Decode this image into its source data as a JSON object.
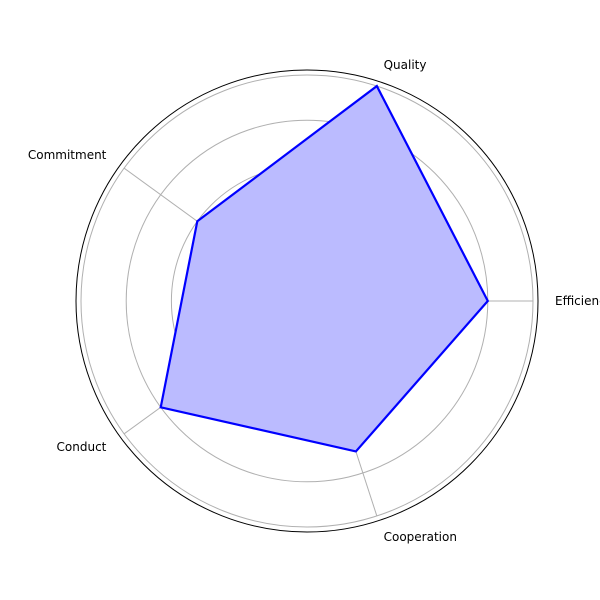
{
  "chart_data": {
    "type": "radar",
    "title": "",
    "categories": [
      "Efficiency",
      "Quality",
      "Commitment",
      "Conduct",
      "Cooperation"
    ],
    "series": [
      {
        "values": [
          4,
          5,
          3,
          4,
          3.5
        ]
      }
    ],
    "rlim": [
      0,
      5
    ],
    "rgrid": [
      1,
      2,
      3,
      4,
      5
    ],
    "grid": true,
    "rtick_labels_shown": false,
    "colors": {
      "line": "#0000ff",
      "fill": "#bbbbff",
      "grid": "#b0b0b0",
      "spine": "#000000"
    }
  }
}
